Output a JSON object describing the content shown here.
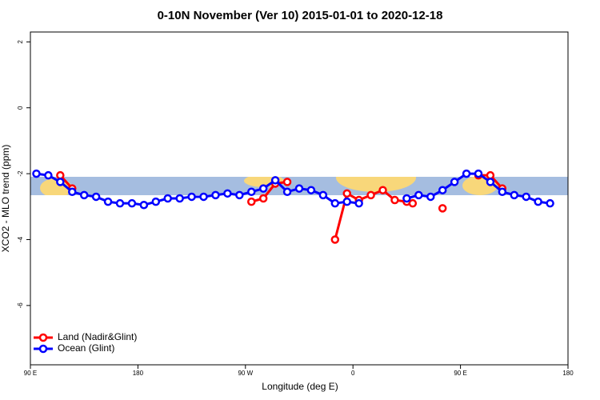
{
  "chart_data": {
    "type": "line",
    "title": "0-10N November (Ver 10)   2015-01-01 to 2020-12-18",
    "x_label": "Longitude (deg E)",
    "y_label": "XCO2 - MLO trend (ppm)",
    "xlim": [
      90,
      540
    ],
    "xticks": [
      {
        "value": 90,
        "label": "90 E"
      },
      180,
      {
        "value": 270,
        "label": "90 W"
      },
      {
        "value": 360,
        "label": "0"
      },
      {
        "value": 450,
        "label": "90 E"
      },
      {
        "value": 540,
        "label": "180"
      }
    ],
    "ylim": [
      -7.8,
      2.3
    ],
    "yticks": [
      -6,
      -4,
      -2,
      0,
      2
    ],
    "legend": "bottom-left",
    "series": [
      {
        "name": "Land (Nadir&Glint)",
        "color": "#ff0000",
        "x": [
          115,
          125,
          null,
          275,
          285,
          295,
          305,
          null,
          345,
          355,
          365,
          375,
          385,
          395,
          405,
          410,
          null,
          435,
          null,
          465,
          475,
          485
        ],
        "values": [
          -2.05,
          -2.45,
          null,
          -2.85,
          -2.75,
          -2.3,
          -2.25,
          null,
          -4.0,
          -2.6,
          -2.8,
          -2.65,
          -2.5,
          -2.8,
          -2.85,
          -2.9,
          null,
          -3.05,
          null,
          -2.05,
          -2.05,
          -2.45
        ]
      },
      {
        "name": "Ocean (Glint)",
        "color": "#0000ff",
        "x": [
          95,
          105,
          115,
          125,
          135,
          145,
          155,
          165,
          175,
          185,
          195,
          205,
          215,
          225,
          235,
          245,
          255,
          265,
          275,
          285,
          295,
          305,
          315,
          325,
          335,
          345,
          355,
          365,
          375,
          385,
          395,
          405,
          415,
          425,
          435,
          445,
          455,
          465,
          475,
          485,
          495,
          505,
          515,
          525
        ],
        "values": [
          -2.0,
          -2.05,
          -2.25,
          -2.55,
          -2.65,
          -2.7,
          -2.85,
          -2.9,
          -2.9,
          -2.95,
          -2.85,
          -2.75,
          -2.75,
          -2.7,
          -2.7,
          -2.65,
          -2.6,
          -2.65,
          -2.55,
          -2.45,
          -2.2,
          -2.55,
          -2.45,
          -2.5,
          -2.65,
          -2.9,
          -2.85,
          -2.9,
          null,
          null,
          null,
          -2.75,
          -2.65,
          -2.7,
          -2.5,
          -2.25,
          -2.0,
          -2.0,
          -2.25,
          -2.55,
          -2.65,
          -2.7,
          -2.85,
          -2.9
        ]
      }
    ]
  }
}
